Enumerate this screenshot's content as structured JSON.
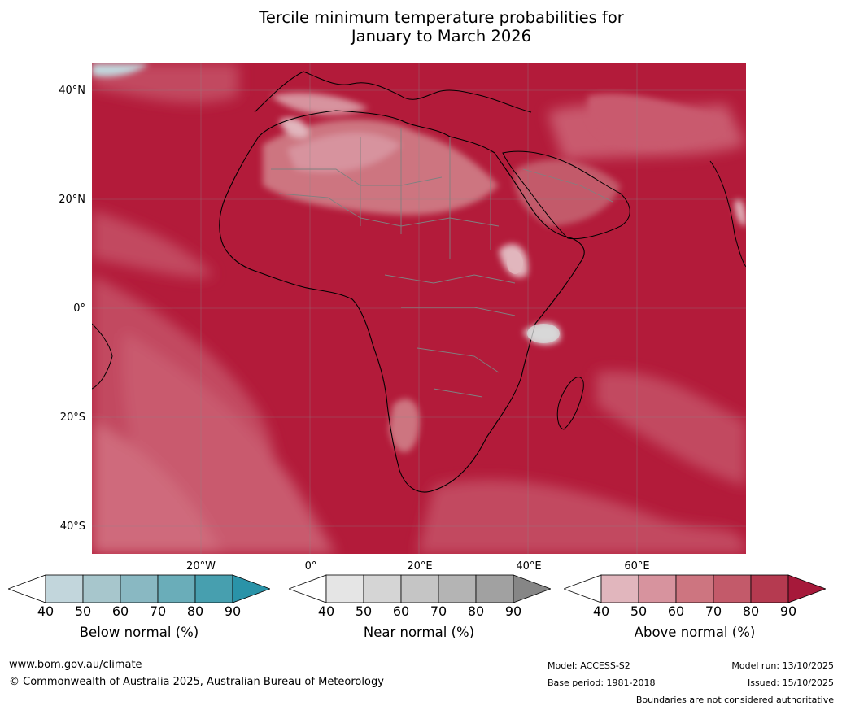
{
  "title": {
    "line1": "Tercile minimum temperature probabilities for",
    "line2": "January to March 2026"
  },
  "map": {
    "lat_labels": [
      "40°N",
      "20°N",
      "0°",
      "20°S",
      "40°S"
    ],
    "lon_labels": [
      "20°W",
      "0°",
      "20°E",
      "40°E",
      "60°E"
    ],
    "land_outline_color": "#000000",
    "border_color": "#808080",
    "dominant_fill": "#b31b3a"
  },
  "legends": [
    {
      "label": "Below normal (%)",
      "ticks": [
        "40",
        "50",
        "60",
        "70",
        "80",
        "90"
      ],
      "colors": [
        "#ffffff",
        "#c2d6dc",
        "#a7c6cc",
        "#89b8c2",
        "#6aadb9",
        "#479faf",
        "#2a93a8"
      ]
    },
    {
      "label": "Near normal (%)",
      "ticks": [
        "40",
        "50",
        "60",
        "70",
        "80",
        "90"
      ],
      "colors": [
        "#ffffff",
        "#e5e5e5",
        "#d5d5d5",
        "#c5c5c5",
        "#b4b4b4",
        "#a1a1a1",
        "#868686"
      ]
    },
    {
      "label": "Above normal (%)",
      "ticks": [
        "40",
        "50",
        "60",
        "70",
        "80",
        "90"
      ],
      "colors": [
        "#ffffff",
        "#e1b6bd",
        "#d7939e",
        "#cd7580",
        "#c35a6a",
        "#b53a50",
        "#a6193a"
      ]
    }
  ],
  "footer": {
    "website": "www.bom.gov.au/climate",
    "copyright": "© Commonwealth of Australia 2025, Australian Bureau of Meteorology",
    "model": "Model: ACCESS-S2",
    "base_period": "Base period: 1981-2018",
    "model_run": "Model run: 13/10/2025",
    "issued": "Issued: 15/10/2025",
    "disclaimer": "Boundaries are not considered authoritative"
  }
}
